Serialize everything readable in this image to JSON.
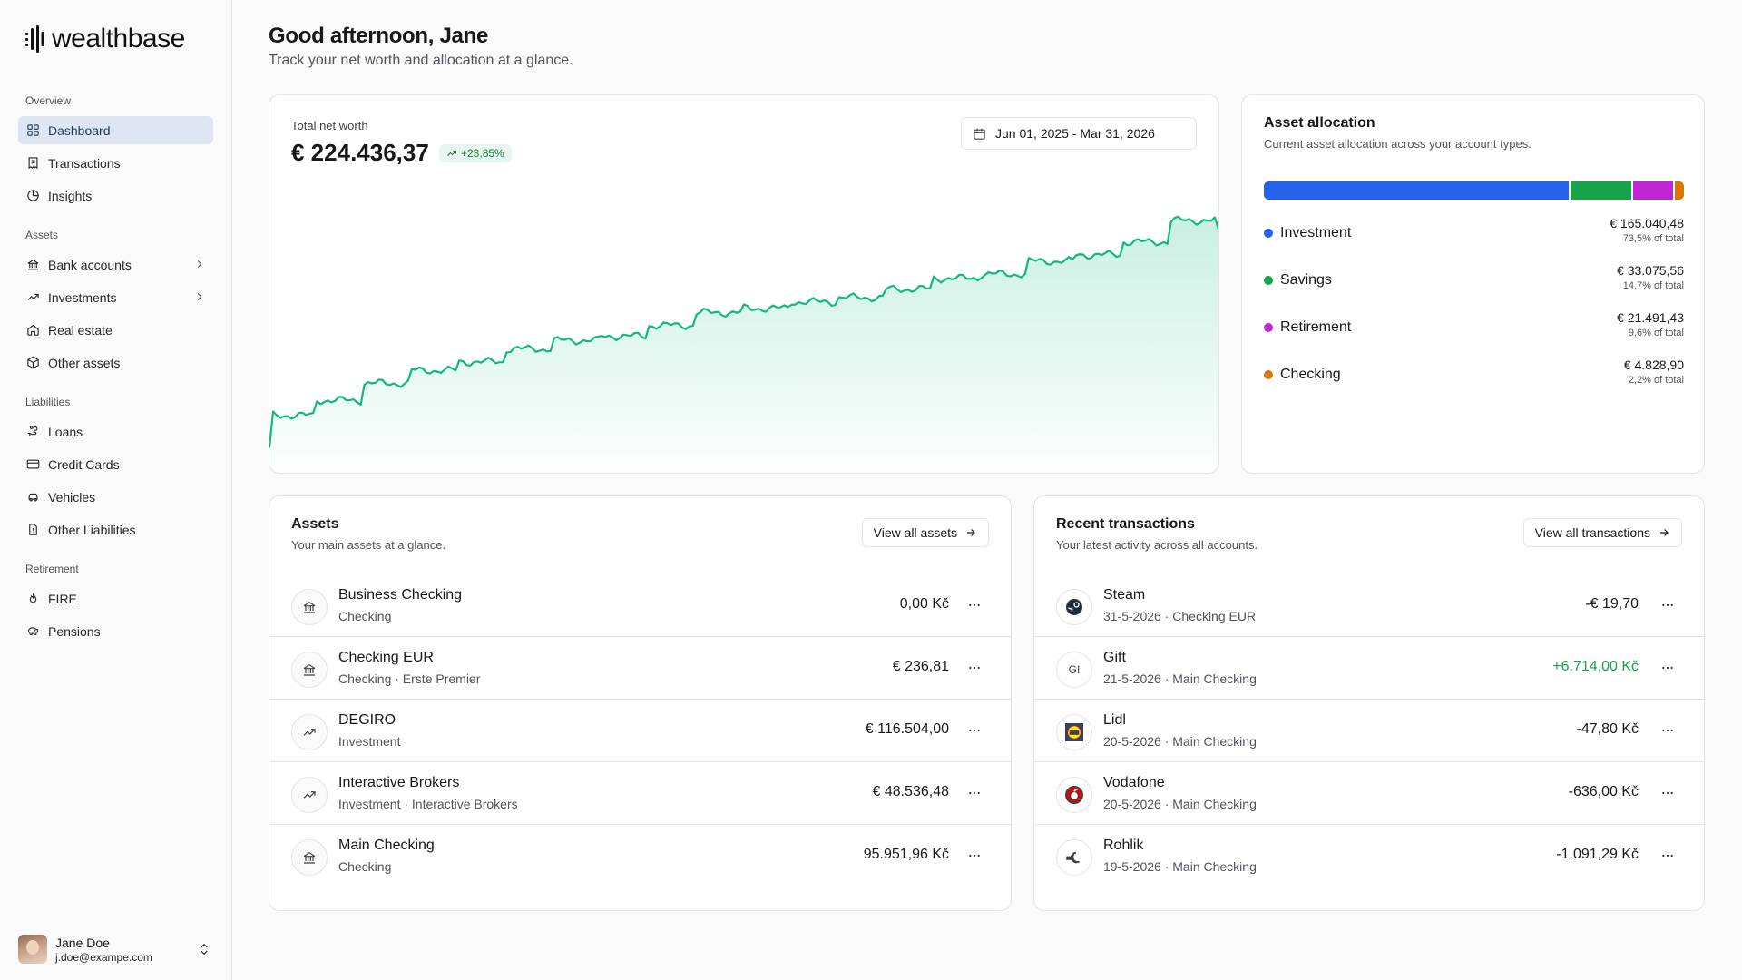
{
  "app": {
    "name": "wealthbase",
    "logo_icon": "wealthbase-logo-icon"
  },
  "sidebar": {
    "groups": [
      {
        "label": "Overview",
        "items": [
          {
            "label": "Dashboard",
            "icon": "grid-icon",
            "active": true
          },
          {
            "label": "Transactions",
            "icon": "receipt-icon"
          },
          {
            "label": "Insights",
            "icon": "pie-chart-icon"
          }
        ]
      },
      {
        "label": "Assets",
        "items": [
          {
            "label": "Bank accounts",
            "icon": "bank-icon",
            "chevron": true
          },
          {
            "label": "Investments",
            "icon": "trending-up-icon",
            "chevron": true
          },
          {
            "label": "Real estate",
            "icon": "house-icon"
          },
          {
            "label": "Other assets",
            "icon": "box-icon"
          }
        ]
      },
      {
        "label": "Liabilities",
        "items": [
          {
            "label": "Loans",
            "icon": "hand-coins-icon"
          },
          {
            "label": "Credit Cards",
            "icon": "credit-card-icon"
          },
          {
            "label": "Vehicles",
            "icon": "car-icon"
          },
          {
            "label": "Other Liabilities",
            "icon": "file-alert-icon"
          }
        ]
      },
      {
        "label": "Retirement",
        "items": [
          {
            "label": "FIRE",
            "icon": "flame-icon"
          },
          {
            "label": "Pensions",
            "icon": "piggy-bank-icon"
          }
        ]
      }
    ],
    "user": {
      "name": "Jane Doe",
      "email": "j.doe@exampe.com"
    }
  },
  "header": {
    "title": "Good afternoon, Jane",
    "subtitle": "Track your net worth and allocation at a glance."
  },
  "net_worth": {
    "label": "Total net worth",
    "value": "€ 224.436,37",
    "change": "+23,85%",
    "date_range": "Jun 01, 2025 - Mar 31, 2026",
    "line_color": "#10b981"
  },
  "allocation": {
    "title": "Asset allocation",
    "subtitle": "Current asset allocation across your account types.",
    "items": [
      {
        "name": "Investment",
        "amount": "€ 165.040,48",
        "pct_text": "73,5% of total",
        "pct": 73.5,
        "color": "#2563eb"
      },
      {
        "name": "Savings",
        "amount": "€ 33.075,56",
        "pct_text": "14,7% of total",
        "pct": 14.7,
        "color": "#16a34a"
      },
      {
        "name": "Retirement",
        "amount": "€ 21.491,43",
        "pct_text": "9,6% of total",
        "pct": 9.6,
        "color": "#c026d3"
      },
      {
        "name": "Checking",
        "amount": "€ 4.828,90",
        "pct_text": "2,2% of total",
        "pct": 2.2,
        "color": "#d97706"
      }
    ]
  },
  "assets": {
    "title": "Assets",
    "subtitle": "Your main assets at a glance.",
    "view_all": "View all assets",
    "rows": [
      {
        "name": "Business Checking",
        "type": "Checking",
        "institution": "",
        "amount": "0,00 Kč",
        "icon": "bank-icon"
      },
      {
        "name": "Checking EUR",
        "type": "Checking",
        "institution": "Erste Premier",
        "amount": "€ 236,81",
        "icon": "bank-icon"
      },
      {
        "name": "DEGIRO",
        "type": "Investment",
        "institution": "",
        "amount": "€ 116.504,00",
        "icon": "trending-up-icon"
      },
      {
        "name": "Interactive Brokers",
        "type": "Investment",
        "institution": "Interactive Brokers",
        "amount": "€ 48.536,48",
        "icon": "trending-up-icon"
      },
      {
        "name": "Main Checking",
        "type": "Checking",
        "institution": "",
        "amount": "95.951,96 Kč",
        "icon": "bank-icon"
      }
    ]
  },
  "transactions": {
    "title": "Recent transactions",
    "subtitle": "Your latest activity across all accounts.",
    "view_all": "View all transactions",
    "rows": [
      {
        "name": "Steam",
        "date": "31-5-2026",
        "account": "Checking EUR",
        "amount": "-€ 19,70",
        "positive": false,
        "icon": "steam-logo-icon",
        "initials": ""
      },
      {
        "name": "Gift",
        "date": "21-5-2026",
        "account": "Main Checking",
        "amount": "+6.714,00 Kč",
        "positive": true,
        "icon": "initials-icon",
        "initials": "GI"
      },
      {
        "name": "Lidl",
        "date": "20-5-2026",
        "account": "Main Checking",
        "amount": "-47,80 Kč",
        "positive": false,
        "icon": "lidl-logo-icon",
        "initials": ""
      },
      {
        "name": "Vodafone",
        "date": "20-5-2026",
        "account": "Main Checking",
        "amount": "-636,00 Kč",
        "positive": false,
        "icon": "vodafone-logo-icon",
        "initials": ""
      },
      {
        "name": "Rohlik",
        "date": "19-5-2026",
        "account": "Main Checking",
        "amount": "-1.091,29 Kč",
        "positive": false,
        "icon": "rohlik-logo-icon",
        "initials": ""
      }
    ]
  }
}
